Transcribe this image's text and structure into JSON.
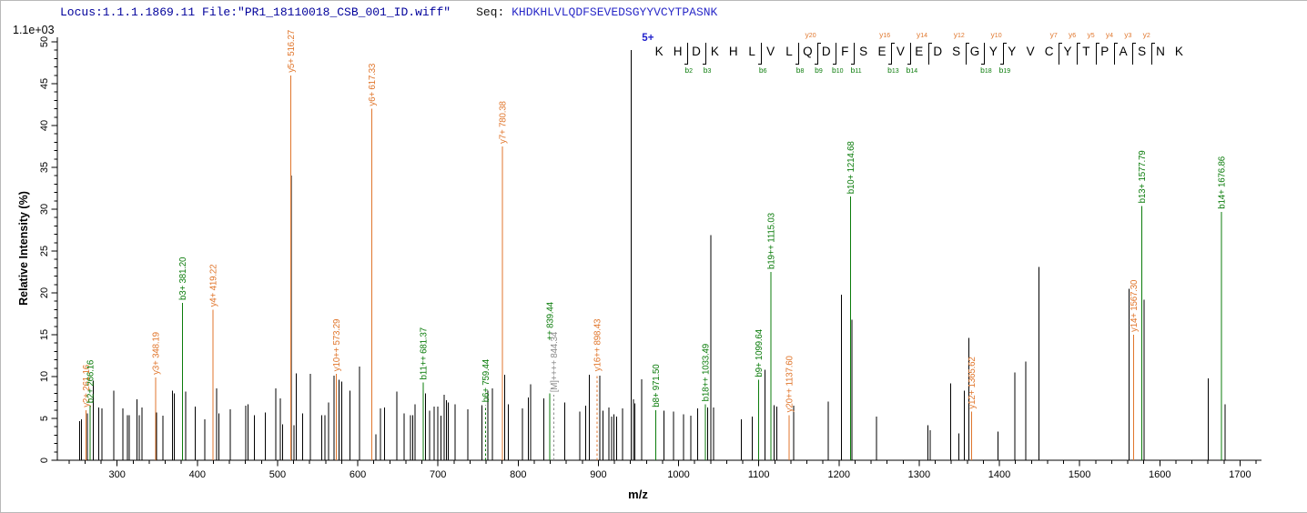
{
  "header": {
    "locus_file": "Locus:1.1.1.1869.11 File:\"PR1_18110018_CSB_001_ID.wiff\"",
    "seq_label": "Seq:",
    "sequence": "KHDKHLVLQDFSEVEDSGYYVCYTPASNK"
  },
  "axes": {
    "y_scale_note": "1.1e+03",
    "y_title": "Relative  Intensity (%)",
    "x_title": "m/z"
  },
  "colors": {
    "y_ion": "#e0762c",
    "b_ion": "#0b7c0b",
    "M_ion": "#8c8c8c",
    "peak": "#000000",
    "charge_blue": "#2222cc",
    "header_navy": "#00009b",
    "seq_blue": "#2a2ac8",
    "axis": "#000000"
  },
  "chart_data": {
    "type": "bar",
    "chart_kind": "ms2-fragment-mass-spectrum",
    "xlabel": "m/z",
    "ylabel": "Relative  Intensity (%)",
    "xlim": [
      226,
      1727
    ],
    "ylim": [
      0,
      50
    ],
    "x_ticks_major": [
      300,
      400,
      500,
      600,
      700,
      800,
      900,
      1000,
      1100,
      1200,
      1300,
      1400,
      1500,
      1600,
      1700
    ],
    "x_minor_step": 20,
    "y_ticks_major": [
      0,
      5,
      10,
      15,
      20,
      25,
      30,
      35,
      40,
      45,
      50
    ],
    "y_minor_step": 1,
    "precursor": {
      "mz": 940.7,
      "pct": 49,
      "label": "5+"
    },
    "labeled_peaks": [
      {
        "mz": 261.16,
        "pct": 6.0,
        "ion": "y",
        "label": "y2+ 261.16"
      },
      {
        "mz": 266.16,
        "pct": 6.5,
        "ion": "b",
        "label": "b2+ 266.16"
      },
      {
        "mz": 348.19,
        "pct": 9.9,
        "ion": "y",
        "label": "y3+ 348.19"
      },
      {
        "mz": 381.2,
        "pct": 18.8,
        "ion": "b",
        "label": "b3+ 381.20"
      },
      {
        "mz": 419.22,
        "pct": 18.0,
        "ion": "y",
        "label": "y4+ 419.22"
      },
      {
        "mz": 516.27,
        "pct": 46.0,
        "ion": "y",
        "label": "y5+ 516.27"
      },
      {
        "mz": 573.29,
        "pct": 10.3,
        "ion": "y",
        "label": "y10++ 573.29"
      },
      {
        "mz": 617.33,
        "pct": 42.0,
        "ion": "y",
        "label": "y6+ 617.33"
      },
      {
        "mz": 681.37,
        "pct": 9.3,
        "ion": "b",
        "label": "b11++ 681.37"
      },
      {
        "mz": 759.44,
        "pct": 6.6,
        "ion": "b",
        "label": "b6+ 759.44",
        "dashed": true
      },
      {
        "mz": 780.38,
        "pct": 37.5,
        "ion": "y",
        "label": "y7+ 780.38"
      },
      {
        "mz": 839.44,
        "pct": 8.0,
        "ion": "b",
        "label": "++ 839.44",
        "label_raised": true
      },
      {
        "mz": 844.34,
        "pct": 7.8,
        "ion": "M",
        "label": "[M]++++ 844.34",
        "dashed": true
      },
      {
        "mz": 898.43,
        "pct": 10.3,
        "ion": "y",
        "label": "y16++ 898.43",
        "dashed": true
      },
      {
        "mz": 971.5,
        "pct": 6.0,
        "ion": "b",
        "label": "b8+ 971.50"
      },
      {
        "mz": 1033.49,
        "pct": 6.7,
        "ion": "b",
        "label": "b18++ 1033.49"
      },
      {
        "mz": 1099.64,
        "pct": 9.6,
        "ion": "b",
        "label": "b9+ 1099.64"
      },
      {
        "mz": 1115.03,
        "pct": 22.5,
        "ion": "b",
        "label": "b19++ 1115.03"
      },
      {
        "mz": 1137.6,
        "pct": 5.4,
        "ion": "y",
        "label": "y20++ 1137.60"
      },
      {
        "mz": 1214.68,
        "pct": 31.5,
        "ion": "b",
        "label": "b10+ 1214.68"
      },
      {
        "mz": 1365.62,
        "pct": 5.8,
        "ion": "y",
        "label": "y12+ 1365.62"
      },
      {
        "mz": 1567.3,
        "pct": 15.0,
        "ion": "y",
        "label": "y14+ 1567.30"
      },
      {
        "mz": 1577.79,
        "pct": 30.4,
        "ion": "b",
        "label": "b13+ 1577.79"
      },
      {
        "mz": 1676.86,
        "pct": 29.7,
        "ion": "b",
        "label": "b14+ 1676.86"
      }
    ],
    "unlabeled_peaks": [
      [
        253,
        4.7
      ],
      [
        255.5,
        4.9
      ],
      [
        263,
        5.6
      ],
      [
        270,
        9.5
      ],
      [
        277,
        6.3
      ],
      [
        281,
        6.2
      ],
      [
        296,
        8.3
      ],
      [
        307,
        6.2
      ],
      [
        313,
        5.4
      ],
      [
        315,
        5.4
      ],
      [
        324.5,
        7.3
      ],
      [
        327.5,
        5.4
      ],
      [
        331,
        6.3
      ],
      [
        349,
        5.7
      ],
      [
        357,
        5.3
      ],
      [
        369,
        8.3
      ],
      [
        371,
        8.0
      ],
      [
        385.5,
        8.2
      ],
      [
        397.5,
        6.4
      ],
      [
        409,
        4.9
      ],
      [
        424,
        8.6
      ],
      [
        427,
        5.6
      ],
      [
        441,
        6.1
      ],
      [
        460.5,
        6.5
      ],
      [
        463,
        6.7
      ],
      [
        471,
        5.4
      ],
      [
        484.5,
        5.7
      ],
      [
        498,
        8.6
      ],
      [
        503.5,
        7.4
      ],
      [
        506.5,
        4.3
      ],
      [
        517.1,
        34.0
      ],
      [
        520.5,
        4.2
      ],
      [
        523.5,
        10.4
      ],
      [
        531,
        5.6
      ],
      [
        541,
        10.3
      ],
      [
        555,
        5.4
      ],
      [
        559,
        5.4
      ],
      [
        563.5,
        6.9
      ],
      [
        570.5,
        10.1
      ],
      [
        576.5,
        9.6
      ],
      [
        580,
        9.4
      ],
      [
        590,
        8.3
      ],
      [
        602,
        11.2
      ],
      [
        622.5,
        3.1
      ],
      [
        628,
        6.2
      ],
      [
        633.5,
        6.3
      ],
      [
        648.5,
        8.2
      ],
      [
        658,
        5.6
      ],
      [
        665.5,
        5.4
      ],
      [
        668.5,
        5.4
      ],
      [
        671.5,
        6.7
      ],
      [
        684.5,
        8.0
      ],
      [
        689.5,
        5.9
      ],
      [
        695.5,
        6.4
      ],
      [
        700,
        6.4
      ],
      [
        703.5,
        5.3
      ],
      [
        708,
        7.8
      ],
      [
        710.5,
        7.2
      ],
      [
        713,
        6.9
      ],
      [
        721.5,
        6.7
      ],
      [
        737.5,
        6.1
      ],
      [
        755,
        6.6
      ],
      [
        762,
        8.3
      ],
      [
        768,
        8.6
      ],
      [
        783,
        10.2
      ],
      [
        787.5,
        6.7
      ],
      [
        805.5,
        6.2
      ],
      [
        812.5,
        7.5
      ],
      [
        815.5,
        9.1
      ],
      [
        832,
        7.4
      ],
      [
        858,
        6.9
      ],
      [
        877,
        5.8
      ],
      [
        884,
        6.5
      ],
      [
        888.5,
        10.2
      ],
      [
        901.5,
        10.1
      ],
      [
        906,
        5.9
      ],
      [
        913,
        6.3
      ],
      [
        916.5,
        5.2
      ],
      [
        919.5,
        5.5
      ],
      [
        922.5,
        5.2
      ],
      [
        930,
        6.2
      ],
      [
        940.7,
        49.0
      ],
      [
        943.5,
        7.3
      ],
      [
        945.5,
        6.8
      ],
      [
        954,
        9.7
      ],
      [
        982,
        5.9
      ],
      [
        993.5,
        5.8
      ],
      [
        1006,
        5.5
      ],
      [
        1015.5,
        5.3
      ],
      [
        1024,
        6.2
      ],
      [
        1036,
        6.3
      ],
      [
        1040.2,
        26.9
      ],
      [
        1043.5,
        6.3
      ],
      [
        1078,
        4.9
      ],
      [
        1092,
        5.2
      ],
      [
        1107.5,
        10.8
      ],
      [
        1119,
        6.6
      ],
      [
        1122.5,
        6.4
      ],
      [
        1143.5,
        6.5
      ],
      [
        1186.5,
        7.0
      ],
      [
        1203,
        19.8
      ],
      [
        1216,
        16.8
      ],
      [
        1246.5,
        5.2
      ],
      [
        1311,
        4.2
      ],
      [
        1313.5,
        3.6
      ],
      [
        1339,
        9.2
      ],
      [
        1349.5,
        3.2
      ],
      [
        1356,
        8.3
      ],
      [
        1362,
        14.6
      ],
      [
        1398,
        3.4
      ],
      [
        1419,
        10.5
      ],
      [
        1433,
        11.8
      ],
      [
        1449.5,
        23.1
      ],
      [
        1561.5,
        20.5
      ],
      [
        1580.5,
        19.2
      ],
      [
        1660.5,
        9.8
      ],
      [
        1681.5,
        6.7
      ]
    ]
  },
  "sequence_annotation": {
    "charge_label": "5+",
    "residues": [
      "K",
      "H",
      "D",
      "K",
      "H",
      "L",
      "V",
      "L",
      "Q",
      "D",
      "F",
      "S",
      "E",
      "V",
      "E",
      "D",
      "S",
      "G",
      "Y",
      "Y",
      "V",
      "C",
      "Y",
      "T",
      "P",
      "A",
      "S",
      "N",
      "K"
    ],
    "markers": [
      {
        "after": 2,
        "b": "b2"
      },
      {
        "after": 3,
        "b": "b3"
      },
      {
        "after": 6,
        "b": "b6"
      },
      {
        "after": 8,
        "b": "b8"
      },
      {
        "after": 9,
        "b": "b9",
        "y": "y20"
      },
      {
        "after": 10,
        "b": "b10"
      },
      {
        "after": 11,
        "b": "b11"
      },
      {
        "after": 13,
        "b": "b13",
        "y": "y16"
      },
      {
        "after": 14,
        "b": "b14"
      },
      {
        "after": 15,
        "y": "y14"
      },
      {
        "after": 17,
        "y": "y12"
      },
      {
        "after": 18,
        "b": "b18"
      },
      {
        "after": 19,
        "b": "b19",
        "y": "y10"
      },
      {
        "after": 22,
        "y": "y7"
      },
      {
        "after": 23,
        "y": "y6"
      },
      {
        "after": 24,
        "y": "y5"
      },
      {
        "after": 25,
        "y": "y4"
      },
      {
        "after": 26,
        "y": "y3"
      },
      {
        "after": 27,
        "y": "y2"
      }
    ]
  }
}
